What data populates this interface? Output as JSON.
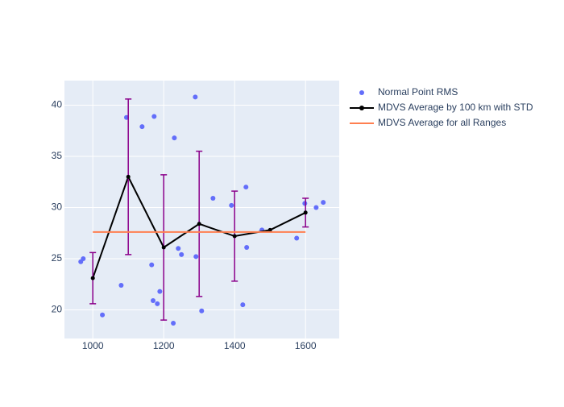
{
  "chart_data": {
    "type": "scatter",
    "xlim": [
      920,
      1695
    ],
    "ylim": [
      17.2,
      42.4
    ],
    "xticks": [
      1000,
      1200,
      1400,
      1600
    ],
    "yticks": [
      20,
      25,
      30,
      35,
      40
    ],
    "grid": true,
    "legend": "outside-right",
    "series": [
      {
        "name": "Normal Point RMS",
        "mode": "markers",
        "color": "#636efa",
        "x": [
          966,
          973,
          1027,
          1080,
          1095,
          1139,
          1166,
          1170,
          1173,
          1182,
          1189,
          1227,
          1230,
          1241,
          1250,
          1289,
          1291,
          1307,
          1339,
          1391,
          1423,
          1432,
          1434,
          1477,
          1575,
          1598,
          1630,
          1650
        ],
        "values": [
          24.7,
          25.0,
          19.5,
          22.4,
          38.8,
          37.9,
          24.4,
          20.9,
          38.9,
          20.6,
          21.8,
          18.7,
          36.8,
          26.0,
          25.4,
          40.8,
          25.2,
          19.9,
          30.9,
          30.2,
          20.5,
          32.0,
          26.1,
          27.8,
          27.0,
          30.4,
          30.0,
          30.5
        ]
      },
      {
        "name": "MDVS Average by 100 km with STD",
        "mode": "lines+markers",
        "color": "#000000",
        "error_color": "#8b008b",
        "x": [
          1000,
          1100,
          1200,
          1300,
          1400,
          1500,
          1600
        ],
        "values": [
          23.1,
          33.0,
          26.1,
          28.4,
          27.2,
          27.8,
          29.5
        ],
        "error": [
          2.5,
          7.6,
          7.1,
          7.1,
          4.4,
          null,
          1.4
        ]
      },
      {
        "name": "MDVS Average for all Ranges",
        "mode": "lines",
        "color": "#ff7f50",
        "x": [
          1000,
          1600
        ],
        "values": [
          27.6,
          27.6
        ]
      }
    ]
  }
}
